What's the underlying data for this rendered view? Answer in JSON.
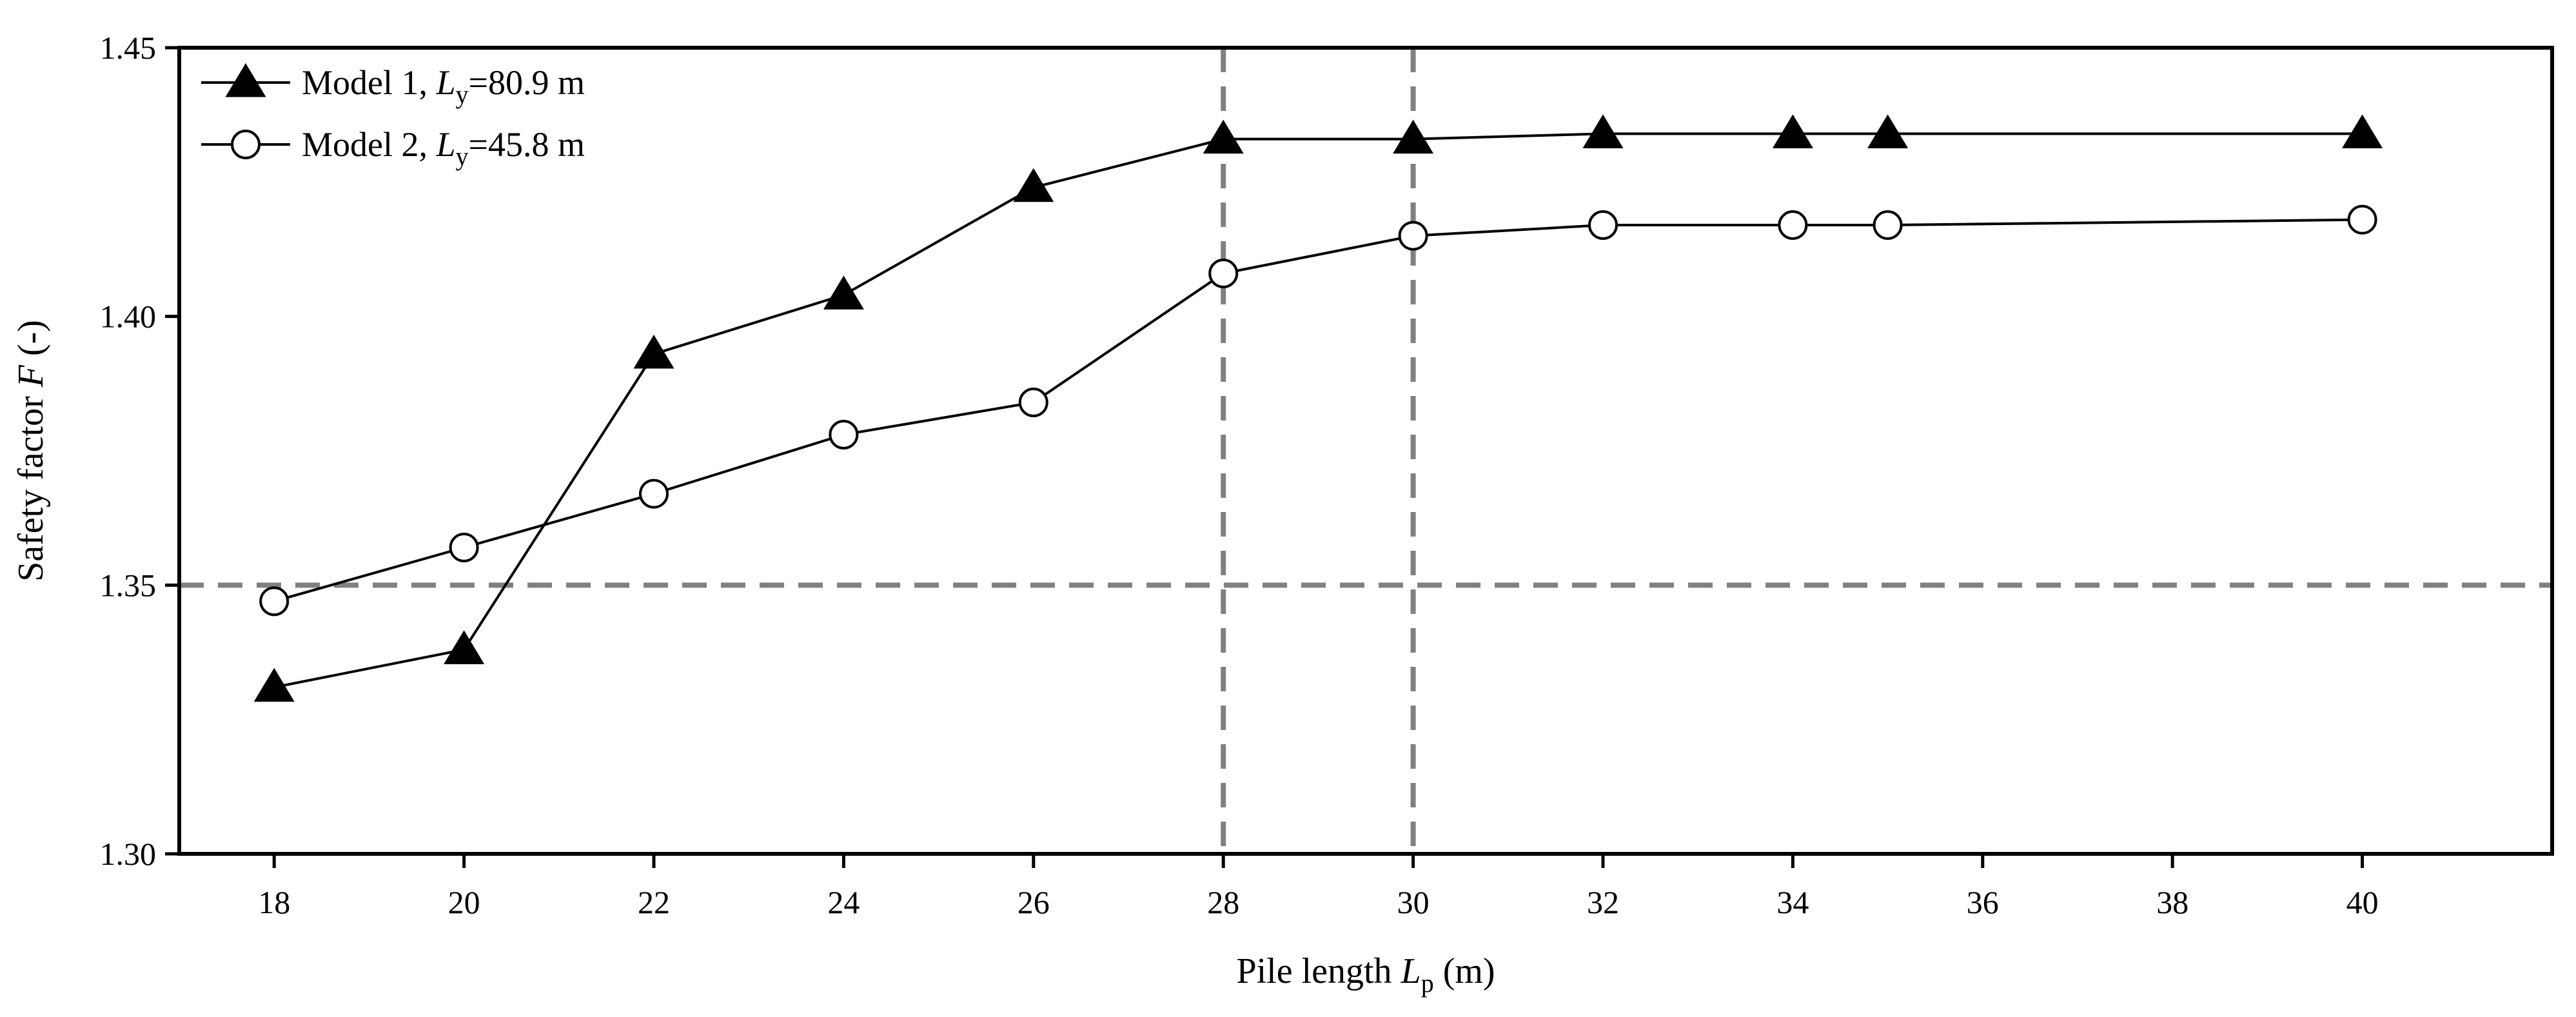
{
  "chart_data": {
    "type": "line",
    "xlabel": {
      "prefix": "Pile length ",
      "var": "L",
      "sub": "p",
      "suffix": " (m)"
    },
    "ylabel": {
      "prefix": "Safety factor ",
      "var": "F",
      "suffix": " (-)"
    },
    "xlim": [
      17,
      42
    ],
    "ylim": [
      1.3,
      1.45
    ],
    "x_ticks": [
      18,
      20,
      22,
      24,
      26,
      28,
      30,
      32,
      34,
      36,
      38,
      40
    ],
    "y_ticks": [
      1.3,
      1.35,
      1.4,
      1.45
    ],
    "y_tick_labels": [
      "1.30",
      "1.35",
      "1.40",
      "1.45"
    ],
    "grid": false,
    "legend_position": "top-left",
    "reference_lines": [
      {
        "orientation": "horizontal",
        "value": 1.35,
        "style": "dashed",
        "color": "#808080"
      },
      {
        "orientation": "vertical",
        "value": 28,
        "style": "dashed",
        "color": "#808080"
      },
      {
        "orientation": "vertical",
        "value": 30,
        "style": "dashed",
        "color": "#808080"
      }
    ],
    "series": [
      {
        "name": "Model 1, Ly=80.9 m",
        "label": {
          "prefix": "Model 1, ",
          "var": "L",
          "sub": "y",
          "suffix": "=80.9 m"
        },
        "marker": "filled-triangle",
        "x": [
          18,
          20,
          22,
          24,
          26,
          28,
          30,
          32,
          34,
          35,
          40
        ],
        "values": [
          1.331,
          1.338,
          1.393,
          1.404,
          1.424,
          1.433,
          1.433,
          1.434,
          1.434,
          1.434,
          1.434
        ]
      },
      {
        "name": "Model 2, Ly=45.8 m",
        "label": {
          "prefix": "Model 2, ",
          "var": "L",
          "sub": "y",
          "suffix": "=45.8 m"
        },
        "marker": "open-circle",
        "x": [
          18,
          20,
          22,
          24,
          26,
          28,
          30,
          32,
          34,
          35,
          40
        ],
        "values": [
          1.347,
          1.357,
          1.367,
          1.378,
          1.384,
          1.408,
          1.415,
          1.417,
          1.417,
          1.417,
          1.418
        ]
      }
    ]
  }
}
